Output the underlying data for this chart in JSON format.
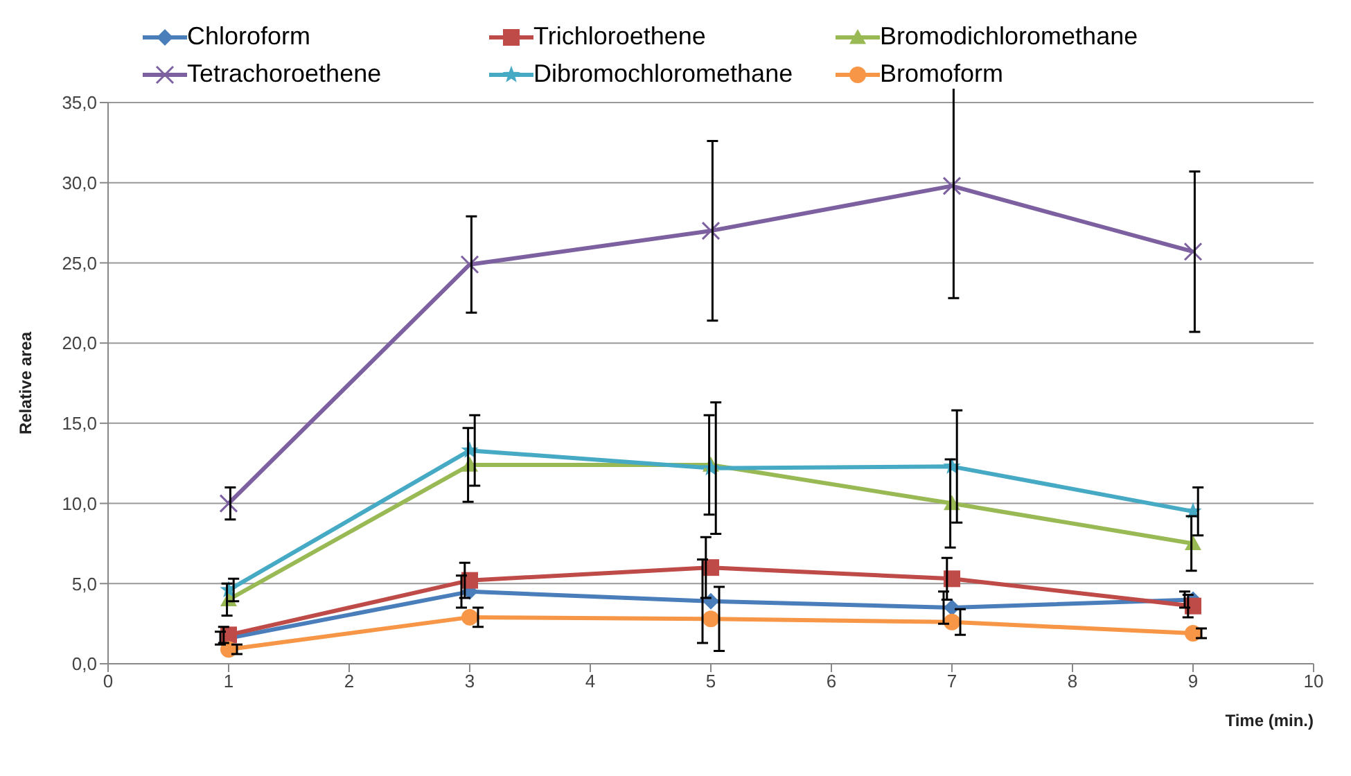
{
  "chart_data": {
    "type": "line",
    "xlabel": "Time (min.)",
    "ylabel": "Relative area",
    "x": [
      1,
      3,
      5,
      7,
      9
    ],
    "xlim": [
      0,
      10
    ],
    "xticks": [
      0,
      1,
      2,
      3,
      4,
      5,
      6,
      7,
      8,
      9,
      10
    ],
    "ylim": [
      0,
      35
    ],
    "yticks": [
      {
        "value": 0,
        "label": "0,0"
      },
      {
        "value": 5,
        "label": "5,0"
      },
      {
        "value": 10,
        "label": "10,0"
      },
      {
        "value": 15,
        "label": "15,0"
      },
      {
        "value": 20,
        "label": "20,0"
      },
      {
        "value": 25,
        "label": "25,0"
      },
      {
        "value": 30,
        "label": "30,0"
      },
      {
        "value": 35,
        "label": "35,0"
      }
    ],
    "grid": "y",
    "legend": "top",
    "series": [
      {
        "name": "Chloroform",
        "color": "#4a7ebb",
        "marker": "diamond",
        "values": [
          1.6,
          4.5,
          3.9,
          3.5,
          4.0
        ],
        "errors": [
          0.4,
          1.0,
          2.6,
          1.0,
          0.5
        ]
      },
      {
        "name": "Trichloroethene",
        "color": "#be4b48",
        "marker": "square",
        "values": [
          1.8,
          5.2,
          6.0,
          5.3,
          3.6
        ],
        "errors": [
          0.5,
          1.1,
          1.9,
          1.3,
          0.7
        ]
      },
      {
        "name": "Bromodichloromethane",
        "color": "#98b954",
        "marker": "triangle",
        "values": [
          4.0,
          12.4,
          12.4,
          10.0,
          7.5
        ],
        "errors": [
          1.0,
          2.3,
          3.1,
          2.75,
          1.7
        ]
      },
      {
        "name": "Tetrachoroethene",
        "color": "#7d60a0",
        "marker": "cross",
        "values": [
          10.0,
          24.9,
          27.0,
          29.8,
          25.7
        ],
        "errors": [
          1.0,
          3.0,
          5.6,
          7.0,
          5.0
        ]
      },
      {
        "name": "Dibromochloromethane",
        "color": "#46aac5",
        "marker": "star",
        "values": [
          4.6,
          13.3,
          12.2,
          12.3,
          9.5
        ],
        "errors": [
          0.7,
          2.2,
          4.1,
          3.5,
          1.5
        ]
      },
      {
        "name": "Bromoform",
        "color": "#f79646",
        "marker": "circle",
        "values": [
          0.9,
          2.9,
          2.8,
          2.6,
          1.9
        ],
        "errors": [
          0.3,
          0.6,
          2.0,
          0.8,
          0.3
        ]
      }
    ]
  }
}
